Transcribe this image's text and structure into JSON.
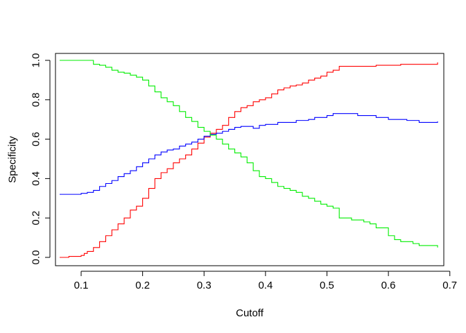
{
  "chart_data": {
    "type": "line",
    "title": "",
    "xlabel": "Cutoff",
    "ylabel": "Specificity",
    "xlim": [
      0.065,
      0.68
    ],
    "ylim": [
      0.0,
      1.0
    ],
    "x_ticks": [
      0.1,
      0.2,
      0.3,
      0.4,
      0.5,
      0.6,
      0.7
    ],
    "x_tick_labels": [
      "0.1",
      "0.2",
      "0.3",
      "0.4",
      "0.5",
      "0.6",
      "0.7"
    ],
    "y_ticks": [
      0.0,
      0.2,
      0.4,
      0.6,
      0.8,
      1.0
    ],
    "y_tick_labels": [
      "0.0",
      "0.2",
      "0.4",
      "0.6",
      "0.8",
      "1.0"
    ],
    "grid": false,
    "legend": "none",
    "series": [
      {
        "color": "#ff0000",
        "x": [
          0.065,
          0.08,
          0.1,
          0.105,
          0.11,
          0.12,
          0.13,
          0.14,
          0.15,
          0.16,
          0.17,
          0.18,
          0.19,
          0.2,
          0.21,
          0.22,
          0.23,
          0.24,
          0.25,
          0.26,
          0.27,
          0.28,
          0.29,
          0.3,
          0.31,
          0.32,
          0.33,
          0.34,
          0.35,
          0.36,
          0.37,
          0.38,
          0.39,
          0.4,
          0.41,
          0.42,
          0.43,
          0.44,
          0.45,
          0.46,
          0.47,
          0.48,
          0.49,
          0.5,
          0.51,
          0.52,
          0.55,
          0.58,
          0.6,
          0.62,
          0.65,
          0.68
        ],
        "y": [
          0.0,
          0.005,
          0.01,
          0.02,
          0.03,
          0.05,
          0.08,
          0.11,
          0.14,
          0.17,
          0.2,
          0.24,
          0.26,
          0.3,
          0.35,
          0.4,
          0.43,
          0.45,
          0.48,
          0.5,
          0.52,
          0.55,
          0.58,
          0.61,
          0.63,
          0.65,
          0.67,
          0.71,
          0.74,
          0.76,
          0.77,
          0.79,
          0.8,
          0.81,
          0.83,
          0.85,
          0.86,
          0.87,
          0.875,
          0.885,
          0.9,
          0.91,
          0.92,
          0.94,
          0.95,
          0.97,
          0.97,
          0.975,
          0.975,
          0.98,
          0.98,
          0.99
        ]
      },
      {
        "color": "#0000ff",
        "x": [
          0.065,
          0.08,
          0.1,
          0.11,
          0.12,
          0.13,
          0.14,
          0.15,
          0.16,
          0.17,
          0.18,
          0.19,
          0.2,
          0.21,
          0.22,
          0.23,
          0.24,
          0.25,
          0.26,
          0.27,
          0.28,
          0.29,
          0.3,
          0.31,
          0.32,
          0.33,
          0.34,
          0.35,
          0.36,
          0.37,
          0.38,
          0.39,
          0.4,
          0.42,
          0.45,
          0.47,
          0.48,
          0.5,
          0.51,
          0.55,
          0.58,
          0.6,
          0.63,
          0.65,
          0.68
        ],
        "y": [
          0.32,
          0.32,
          0.325,
          0.33,
          0.34,
          0.36,
          0.375,
          0.39,
          0.41,
          0.425,
          0.44,
          0.46,
          0.48,
          0.5,
          0.52,
          0.535,
          0.545,
          0.55,
          0.565,
          0.575,
          0.585,
          0.6,
          0.615,
          0.625,
          0.63,
          0.64,
          0.65,
          0.66,
          0.665,
          0.665,
          0.655,
          0.67,
          0.675,
          0.685,
          0.695,
          0.7,
          0.71,
          0.72,
          0.73,
          0.72,
          0.71,
          0.7,
          0.695,
          0.685,
          0.69
        ]
      },
      {
        "color": "#00ee00",
        "x": [
          0.065,
          0.1,
          0.115,
          0.12,
          0.13,
          0.14,
          0.15,
          0.16,
          0.17,
          0.18,
          0.19,
          0.2,
          0.21,
          0.22,
          0.23,
          0.24,
          0.25,
          0.26,
          0.27,
          0.28,
          0.29,
          0.3,
          0.31,
          0.32,
          0.33,
          0.34,
          0.35,
          0.36,
          0.37,
          0.38,
          0.39,
          0.4,
          0.41,
          0.42,
          0.43,
          0.44,
          0.45,
          0.46,
          0.47,
          0.48,
          0.49,
          0.5,
          0.51,
          0.52,
          0.54,
          0.56,
          0.57,
          0.58,
          0.6,
          0.61,
          0.62,
          0.64,
          0.65,
          0.68
        ],
        "y": [
          1.0,
          1.0,
          1.0,
          0.98,
          0.975,
          0.965,
          0.95,
          0.94,
          0.935,
          0.925,
          0.915,
          0.9,
          0.87,
          0.84,
          0.81,
          0.79,
          0.77,
          0.74,
          0.71,
          0.69,
          0.66,
          0.64,
          0.62,
          0.6,
          0.575,
          0.55,
          0.53,
          0.51,
          0.48,
          0.44,
          0.41,
          0.4,
          0.38,
          0.36,
          0.35,
          0.34,
          0.33,
          0.31,
          0.3,
          0.285,
          0.27,
          0.26,
          0.25,
          0.2,
          0.19,
          0.18,
          0.17,
          0.15,
          0.11,
          0.09,
          0.08,
          0.07,
          0.06,
          0.05
        ]
      }
    ]
  }
}
